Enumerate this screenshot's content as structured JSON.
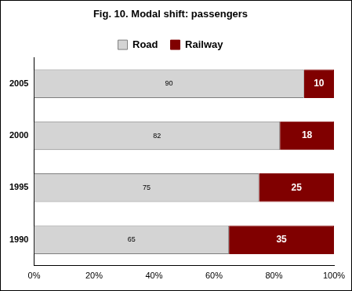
{
  "chart_data": {
    "type": "bar",
    "title": "Fig. 10. Modal shift: passengers",
    "orientation": "horizontal",
    "stacked": true,
    "data_labels": true,
    "legend": "top",
    "grid": false,
    "categories": [
      "2005",
      "2000",
      "1995",
      "1990"
    ],
    "series": [
      {
        "name": "Road",
        "color": "#d4d4d4",
        "values": [
          90,
          82,
          75,
          65
        ]
      },
      {
        "name": "Railway",
        "color": "#800000",
        "values": [
          10,
          18,
          25,
          35
        ]
      }
    ],
    "xlim": [
      0,
      100
    ],
    "xticks": [
      {
        "value": 0,
        "label": "0%"
      },
      {
        "value": 20,
        "label": "20%"
      },
      {
        "value": 40,
        "label": "40%"
      },
      {
        "value": 60,
        "label": "60%"
      },
      {
        "value": 80,
        "label": "80%"
      },
      {
        "value": 100,
        "label": "100%"
      }
    ]
  }
}
